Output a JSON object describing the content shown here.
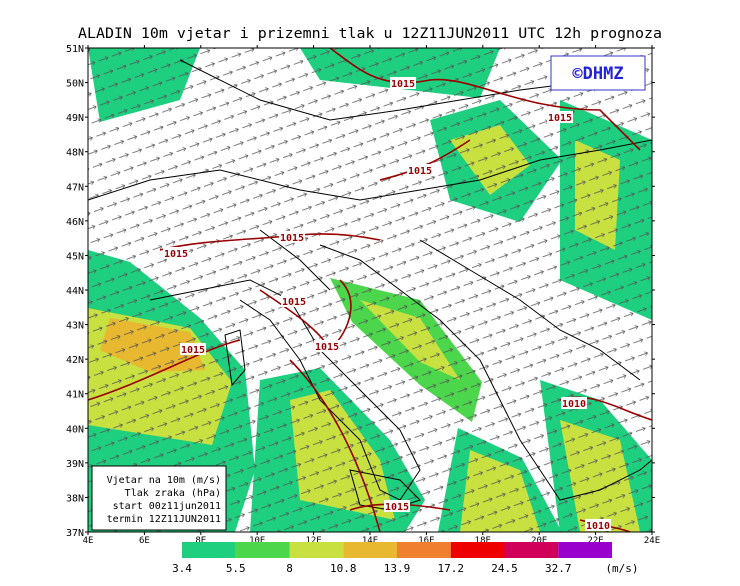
{
  "title": "ALADIN  10m vjetar i prizemni tlak u 12Z11JUN2011 UTC 12h prognoza",
  "logo": "©DHMZ",
  "lat_labels": [
    "37N",
    "38N",
    "39N",
    "40N",
    "41N",
    "42N",
    "43N",
    "44N",
    "45N",
    "46N",
    "47N",
    "48N",
    "49N",
    "50N",
    "51N"
  ],
  "lon_labels": [
    "4E",
    "6E",
    "8E",
    "10E",
    "12E",
    "14E",
    "16E",
    "18E",
    "20E",
    "22E",
    "24E"
  ],
  "isobar_labels": [
    "1015",
    "1015",
    "1015",
    "1015",
    "1015",
    "1015",
    "1015",
    "1015",
    "1015",
    "1010",
    "1010"
  ],
  "legend_box": [
    "Vjetar na 10m (m/s)",
    "Tlak zraka (hPa)",
    "start 00z11jun2011",
    "termin 12Z11JUN2011"
  ],
  "colorbar": {
    "levels": [
      3.4,
      5.5,
      8,
      10.8,
      13.9,
      17.2,
      24.5,
      32.7
    ],
    "colors": [
      "#1ecf80",
      "#4cd64c",
      "#c8e040",
      "#e8b830",
      "#f08030",
      "#ee0000",
      "#d0005a",
      "#9900cc"
    ],
    "unit": "(m/s)"
  }
}
